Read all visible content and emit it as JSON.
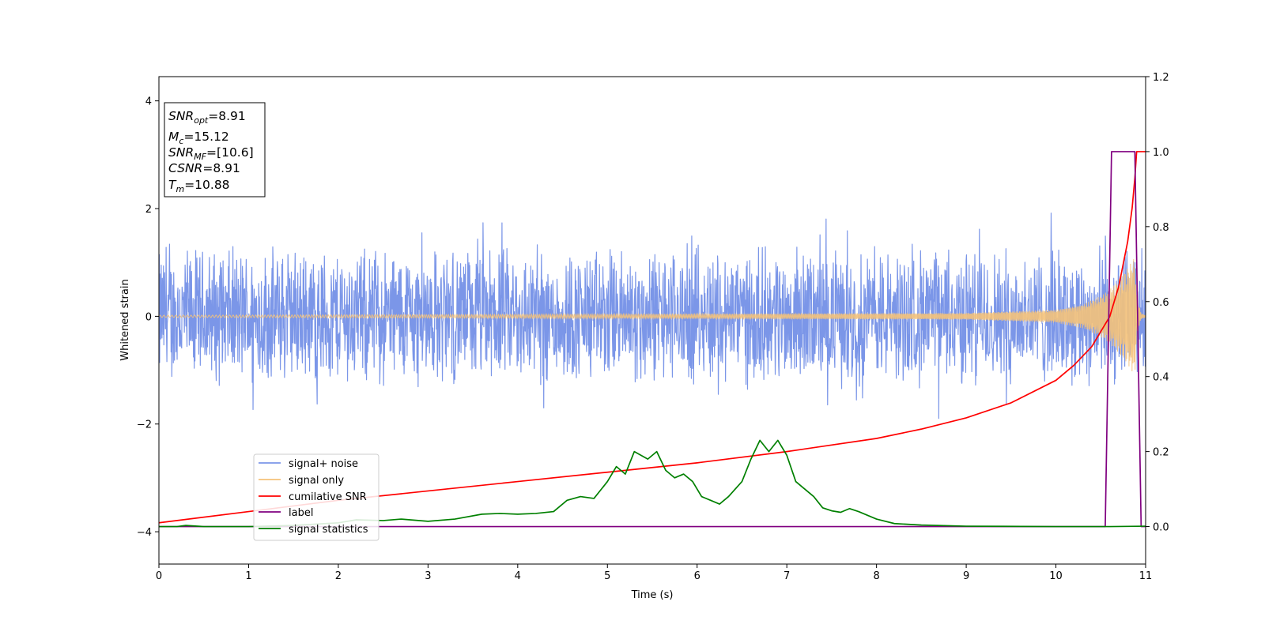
{
  "chart_data": {
    "type": "line",
    "xlabel": "Time (s)",
    "ylabel": "Whitened strain",
    "xlim": [
      0,
      11
    ],
    "ylim": [
      -4.6,
      4.45
    ],
    "y2lim": [
      -0.1,
      1.2
    ],
    "xticks": [
      "0",
      "1",
      "2",
      "3",
      "4",
      "5",
      "6",
      "7",
      "8",
      "9",
      "10",
      "11"
    ],
    "yticks": [
      "−4",
      "−2",
      "0",
      "2",
      "4"
    ],
    "y2ticks": [
      "0.0",
      "0.2",
      "0.4",
      "0.6",
      "0.8",
      "1.0",
      "1.2"
    ],
    "legend_position": "lower-left",
    "grid": false,
    "annotation": {
      "snr_opt": {
        "main": "SNR",
        "sub": "opt",
        "value": "=8.91"
      },
      "mc": {
        "main": "M",
        "sub": "c",
        "value": "=15.12"
      },
      "snr_mf": {
        "main": "SNR",
        "sub": "MF",
        "value": "=[10.6]"
      },
      "csnr": {
        "main": "CSNR",
        "value": "=8.91"
      },
      "tm": {
        "main": "T",
        "sub": "m",
        "value": "=10.88"
      }
    },
    "series": [
      {
        "name": "signal+ noise",
        "color": "#7b96e8",
        "axis": "left",
        "description_values": {
          "typical_envelope": [
            -1.4,
            1.4
          ],
          "peak_max": 2.2,
          "peak_min": -2.2,
          "duration": 11
        }
      },
      {
        "name": "signal only",
        "color": "#f4c27a",
        "axis": "left",
        "points": [
          [
            0,
            0.02
          ],
          [
            5,
            0.04
          ],
          [
            9,
            0.06
          ],
          [
            10,
            0.12
          ],
          [
            10.3,
            0.22
          ],
          [
            10.5,
            0.38
          ],
          [
            10.6,
            0.5
          ],
          [
            10.7,
            0.68
          ],
          [
            10.8,
            0.9
          ],
          [
            10.88,
            1.1
          ],
          [
            10.9,
            0.4
          ],
          [
            10.95,
            0.05
          ],
          [
            11,
            0.02
          ]
        ]
      },
      {
        "name": "cumilative SNR",
        "color": "#ff0000",
        "axis": "right",
        "points": [
          [
            0,
            0.01
          ],
          [
            1,
            0.04
          ],
          [
            2,
            0.07
          ],
          [
            3,
            0.095
          ],
          [
            4,
            0.12
          ],
          [
            5,
            0.145
          ],
          [
            6,
            0.17
          ],
          [
            7,
            0.2
          ],
          [
            8,
            0.235
          ],
          [
            8.5,
            0.26
          ],
          [
            9,
            0.29
          ],
          [
            9.5,
            0.33
          ],
          [
            10,
            0.39
          ],
          [
            10.2,
            0.43
          ],
          [
            10.4,
            0.48
          ],
          [
            10.5,
            0.52
          ],
          [
            10.6,
            0.56
          ],
          [
            10.7,
            0.64
          ],
          [
            10.8,
            0.76
          ],
          [
            10.85,
            0.85
          ],
          [
            10.88,
            0.93
          ],
          [
            10.9,
            1.0
          ],
          [
            11,
            1.0
          ]
        ]
      },
      {
        "name": "label",
        "color": "#800080",
        "axis": "right",
        "points": [
          [
            0,
            0
          ],
          [
            10.55,
            0
          ],
          [
            10.62,
            1
          ],
          [
            10.88,
            1
          ],
          [
            10.95,
            0
          ],
          [
            11,
            0
          ]
        ]
      },
      {
        "name": "signal statistics",
        "color": "#008000",
        "axis": "right",
        "points": [
          [
            0,
            0.0
          ],
          [
            0.2,
            0.0
          ],
          [
            0.3,
            0.003
          ],
          [
            0.5,
            0.0
          ],
          [
            1,
            0.0
          ],
          [
            1.5,
            0.003
          ],
          [
            2,
            0.01
          ],
          [
            2.2,
            0.018
          ],
          [
            2.5,
            0.016
          ],
          [
            2.7,
            0.02
          ],
          [
            3,
            0.014
          ],
          [
            3.3,
            0.02
          ],
          [
            3.6,
            0.033
          ],
          [
            3.8,
            0.035
          ],
          [
            4,
            0.033
          ],
          [
            4.2,
            0.035
          ],
          [
            4.4,
            0.04
          ],
          [
            4.55,
            0.07
          ],
          [
            4.7,
            0.08
          ],
          [
            4.85,
            0.075
          ],
          [
            5,
            0.12
          ],
          [
            5.1,
            0.16
          ],
          [
            5.2,
            0.14
          ],
          [
            5.3,
            0.2
          ],
          [
            5.45,
            0.18
          ],
          [
            5.55,
            0.2
          ],
          [
            5.65,
            0.15
          ],
          [
            5.75,
            0.13
          ],
          [
            5.85,
            0.14
          ],
          [
            5.95,
            0.12
          ],
          [
            6.05,
            0.08
          ],
          [
            6.15,
            0.07
          ],
          [
            6.25,
            0.06
          ],
          [
            6.35,
            0.08
          ],
          [
            6.5,
            0.12
          ],
          [
            6.6,
            0.18
          ],
          [
            6.7,
            0.23
          ],
          [
            6.8,
            0.2
          ],
          [
            6.9,
            0.23
          ],
          [
            7,
            0.19
          ],
          [
            7.1,
            0.12
          ],
          [
            7.2,
            0.1
          ],
          [
            7.3,
            0.08
          ],
          [
            7.4,
            0.05
          ],
          [
            7.5,
            0.042
          ],
          [
            7.6,
            0.038
          ],
          [
            7.7,
            0.048
          ],
          [
            7.8,
            0.04
          ],
          [
            8,
            0.02
          ],
          [
            8.2,
            0.008
          ],
          [
            8.5,
            0.004
          ],
          [
            9,
            0.001
          ],
          [
            10,
            0.0
          ],
          [
            10.55,
            0.0
          ],
          [
            10.6,
            0.0
          ],
          [
            11,
            0.001
          ]
        ]
      }
    ]
  }
}
